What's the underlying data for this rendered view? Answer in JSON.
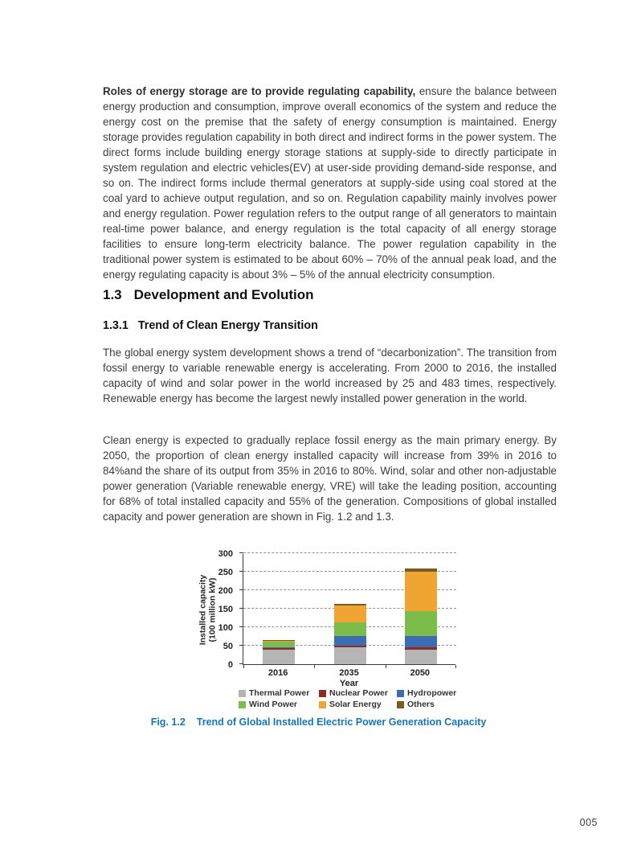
{
  "page": {
    "number": "005"
  },
  "intro_paragraph": {
    "lead": "Roles of energy storage are to provide regulating capability,",
    "rest": " ensure the balance between energy production and consumption, improve overall economics of the system and reduce the energy cost on the premise that the safety of energy consumption is maintained. Energy storage provides regulation capability in both direct and indirect forms in the power system. The direct forms include building energy storage stations at supply-side to directly participate in system regulation and electric vehicles(EV) at user-side providing demand-side response, and so on. The indirect forms include thermal generators at supply-side using coal stored at the coal yard to achieve output regulation, and so on. Regulation capability mainly involves power and energy regulation. Power regulation refers to the output range of all generators to maintain real-time power balance, and energy regulation is the total capacity of all energy storage facilities to ensure long-term electricity balance. The power regulation capability in the traditional power system is estimated to be about 60% – 70% of the annual peak load, and the energy regulating capacity is about 3% – 5% of the annual electricity consumption."
  },
  "section": {
    "number": "1.3",
    "title": "Development and Evolution"
  },
  "subsection": {
    "number": "1.3.1",
    "title": "Trend of Clean Energy Transition"
  },
  "paragraphs": {
    "trend": "The global energy system development shows a trend of “decarbonization”. The transition from fossil energy to variable renewable energy is accelerating. From 2000 to 2016, the installed capacity of wind and solar power in the world increased by 25 and 483 times, respectively. Renewable energy has become the largest newly installed power generation in the world.",
    "clean": "Clean energy is expected to gradually replace fossil energy as the main primary energy. By 2050, the proportion of clean energy installed capacity will increase from 39% in 2016 to 84%and the share of its output from 35% in 2016 to 80%. Wind, solar and other non-adjustable power generation (Variable renewable energy, VRE) will take the leading position, accounting for 68% of total installed capacity and 55% of the generation. Compositions of global installed capacity and power generation are shown in Fig. 1.2 and 1.3."
  },
  "figure": {
    "caption_label": "Fig. 1.2",
    "caption_title": "Trend of Global Installed Electric Power Generation Capacity"
  },
  "chart_data": {
    "type": "bar",
    "stacked": true,
    "categories": [
      "2016",
      "2035",
      "2050"
    ],
    "series": [
      {
        "name": "Thermal Power",
        "color": "#b5b5b5",
        "values": [
          40,
          46,
          39
        ]
      },
      {
        "name": "Nuclear Power",
        "color": "#8e2c21",
        "values": [
          4,
          5,
          7
        ]
      },
      {
        "name": "Hydropower",
        "color": "#3c6cb4",
        "values": [
          1,
          26,
          30
        ]
      },
      {
        "name": "Wind Power",
        "color": "#7cbc4a",
        "values": [
          15,
          36,
          67
        ]
      },
      {
        "name": "Solar Energy",
        "color": "#f0a432",
        "values": [
          3,
          45,
          107
        ]
      },
      {
        "name": "Others",
        "color": "#7a5c20",
        "values": [
          2,
          5,
          8
        ]
      }
    ],
    "totals": [
      65,
      163,
      258
    ],
    "xlabel": "Year",
    "ylabel_line1": "Installed capacity",
    "ylabel_line2": "(100 million kW)",
    "ylim": [
      0,
      300
    ],
    "yticks": [
      0,
      50,
      100,
      150,
      200,
      250,
      300
    ],
    "grid": "horizontal-dashed",
    "legend_position": "bottom"
  }
}
